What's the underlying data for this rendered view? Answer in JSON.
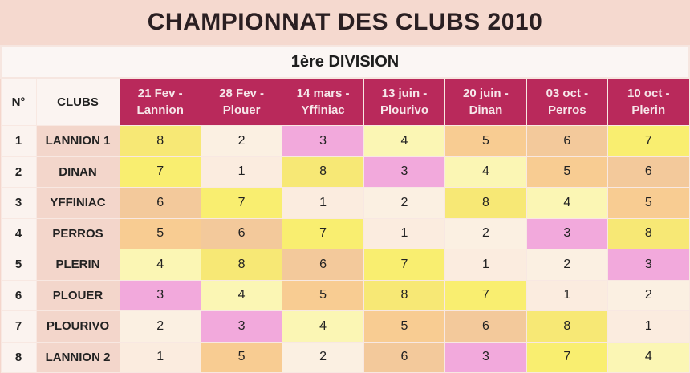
{
  "title": "CHAMPIONNAT DES CLUBS 2010",
  "division": "1ère DIVISION",
  "headers": {
    "num": "N°",
    "clubs": "CLUBS",
    "rounds": [
      {
        "date": "21 Fev -",
        "place": "Lannion"
      },
      {
        "date": "28 Fev -",
        "place": "Plouer"
      },
      {
        "date": "14 mars -",
        "place": "Yffiniac"
      },
      {
        "date": "13 juin -",
        "place": "Plourivo"
      },
      {
        "date": "20 juin -",
        "place": "Dinan"
      },
      {
        "date": "03 oct -",
        "place": "Perros"
      },
      {
        "date": "10 oct -",
        "place": "Plerin"
      }
    ]
  },
  "rows": [
    {
      "num": "1",
      "club": "LANNION 1",
      "ranks": [
        "8",
        "2",
        "3",
        "4",
        "5",
        "6",
        "7"
      ]
    },
    {
      "num": "2",
      "club": "DINAN",
      "ranks": [
        "7",
        "1",
        "8",
        "3",
        "4",
        "5",
        "6"
      ]
    },
    {
      "num": "3",
      "club": "YFFINIAC",
      "ranks": [
        "6",
        "7",
        "1",
        "2",
        "8",
        "4",
        "5"
      ]
    },
    {
      "num": "4",
      "club": "PERROS",
      "ranks": [
        "5",
        "6",
        "7",
        "1",
        "2",
        "3",
        "8"
      ]
    },
    {
      "num": "5",
      "club": "PLERIN",
      "ranks": [
        "4",
        "8",
        "6",
        "7",
        "1",
        "2",
        "3"
      ]
    },
    {
      "num": "6",
      "club": "PLOUER",
      "ranks": [
        "3",
        "4",
        "5",
        "8",
        "7",
        "1",
        "2"
      ]
    },
    {
      "num": "7",
      "club": "PLOURIVO",
      "ranks": [
        "2",
        "3",
        "4",
        "5",
        "6",
        "8",
        "1"
      ]
    },
    {
      "num": "8",
      "club": "LANNION 2",
      "ranks": [
        "1",
        "5",
        "2",
        "6",
        "3",
        "7",
        "4"
      ]
    }
  ],
  "colors": {
    "header_accent": "#b9295b",
    "rank_1": "#fbecdf",
    "rank_2": "#fbf0e2",
    "rank_3": "#f2a9dc",
    "rank_4": "#fbf6b4",
    "rank_5": "#f8cc92",
    "rank_6": "#f3c99b",
    "rank_7": "#f9ee70",
    "rank_8": "#f7e875"
  }
}
